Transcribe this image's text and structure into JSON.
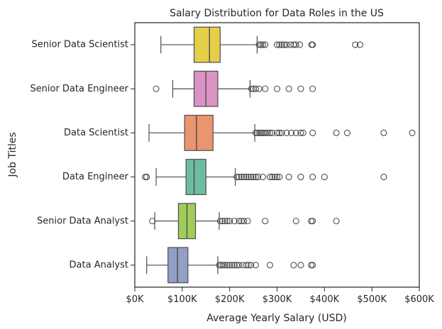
{
  "chart_data": {
    "type": "boxplot",
    "title": "Salary Distribution for Data Roles in the US",
    "xlabel": "Average Yearly Salary (USD)",
    "ylabel": "Job Titles",
    "xlim": [
      0,
      600000
    ],
    "xticks": [
      0,
      100000,
      200000,
      300000,
      400000,
      500000,
      600000
    ],
    "xtick_labels": [
      "$0K",
      "$100K",
      "$200K",
      "$300K",
      "$400K",
      "$500K",
      "$600K"
    ],
    "grid": false,
    "categories": [
      "Senior Data Scientist",
      "Senior Data Engineer",
      "Data Scientist",
      "Data Engineer",
      "Senior Data Analyst",
      "Data Analyst"
    ],
    "series": [
      {
        "category": "Senior Data Scientist",
        "color": "#e5cf48",
        "whisker_low": 55000,
        "q1": 125000,
        "median": 157500,
        "q3": 180000,
        "whisker_high": 258000,
        "outliers": [
          262000,
          266000,
          270000,
          275000,
          300000,
          305000,
          310000,
          315000,
          320000,
          328000,
          335000,
          340000,
          348000,
          373000,
          375000,
          465000,
          475000
        ]
      },
      {
        "category": "Senior Data Engineer",
        "color": "#db93c5",
        "whisker_low": 80000,
        "q1": 125000,
        "median": 150000,
        "q3": 175000,
        "whisker_high": 243000,
        "outliers": [
          45000,
          246000,
          250000,
          255000,
          262000,
          275000,
          300000,
          325000,
          350000,
          375000
        ]
      },
      {
        "category": "Data Scientist",
        "color": "#eb9470",
        "whisker_low": 30000,
        "q1": 105000,
        "median": 130000,
        "q3": 165000,
        "whisker_high": 253000,
        "outliers": [
          255000,
          258000,
          262000,
          265000,
          268000,
          272000,
          276000,
          280000,
          285000,
          290000,
          300000,
          305000,
          310000,
          320000,
          330000,
          340000,
          350000,
          355000,
          375000,
          425000,
          448000,
          525000,
          585000
        ]
      },
      {
        "category": "Data Engineer",
        "color": "#6cbda0",
        "whisker_low": 45000,
        "q1": 108000,
        "median": 125000,
        "q3": 150000,
        "whisker_high": 212000,
        "outliers": [
          22000,
          25000,
          215000,
          220000,
          225000,
          230000,
          235000,
          240000,
          245000,
          250000,
          255000,
          260000,
          270000,
          285000,
          290000,
          295000,
          300000,
          305000,
          325000,
          350000,
          375000,
          400000,
          525000
        ]
      },
      {
        "category": "Senior Data Analyst",
        "color": "#a2cc5a",
        "whisker_low": 42000,
        "q1": 92000,
        "median": 110000,
        "q3": 128000,
        "whisker_high": 178000,
        "outliers": [
          37000,
          180000,
          185000,
          190000,
          195000,
          200000,
          210000,
          220000,
          225000,
          230000,
          238000,
          275000,
          340000,
          372000,
          375000,
          425000
        ]
      },
      {
        "category": "Data Analyst",
        "color": "#929fc6",
        "whisker_low": 25000,
        "q1": 70000,
        "median": 90000,
        "q3": 112000,
        "whisker_high": 175000,
        "outliers": [
          178000,
          182000,
          186000,
          190000,
          195000,
          200000,
          205000,
          210000,
          215000,
          220000,
          228000,
          235000,
          240000,
          245000,
          255000,
          285000,
          335000,
          350000,
          372000,
          375000
        ]
      }
    ]
  }
}
